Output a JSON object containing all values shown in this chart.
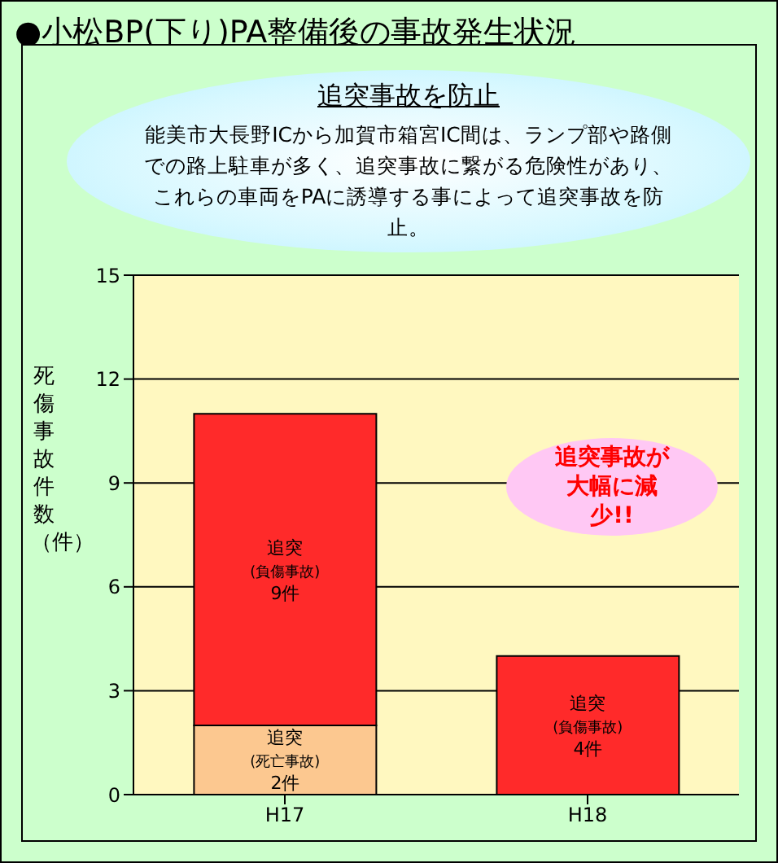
{
  "chart_data": {
    "type": "bar",
    "title": "●小松BP(下り)PA整備後の事故発生状況",
    "ylabel": "死傷事故件数（件）",
    "categories": [
      "H17",
      "H18"
    ],
    "series": [
      {
        "color": "#fcc890",
        "values": [
          2,
          0
        ],
        "value_labels": [
          "追突\n(死亡事故)\n2件",
          null
        ]
      },
      {
        "color": "#ff2a2a",
        "values": [
          9,
          4
        ],
        "value_labels": [
          "追突\n(負傷事故)\n9件",
          "追突\n(負傷事故)\n4件"
        ]
      }
    ],
    "stacked": true,
    "ylim": [
      0,
      15
    ],
    "yticks": [
      0,
      3,
      6,
      9,
      12,
      15
    ],
    "grid": "y",
    "legend": false,
    "annotations": [
      "追突事故を防止",
      "能美市大長野ICから加賀市箱宮IC間は、ランプ部や路側での路上駐車が多く、追突事故に繋がる危険性があり、これらの車両をPAに誘導する事によって追突事故を防止。",
      "追突事故が大幅に減少!!"
    ]
  }
}
